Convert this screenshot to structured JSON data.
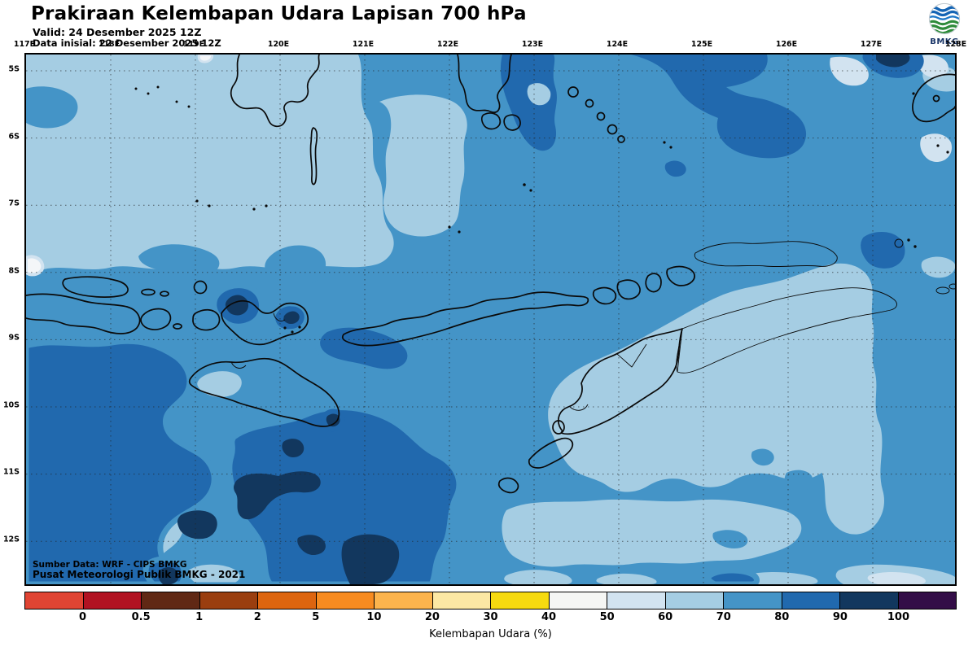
{
  "header": {
    "title": "Prakiraan Kelembapan Udara Lapisan 700 hPa",
    "valid_line": "Valid: 24 Desember 2025 12Z",
    "initial_line": "Data inisial: 22 Desember 2025 12Z"
  },
  "logo": {
    "label": "BMKG"
  },
  "axes": {
    "lon_labels": [
      "117E",
      "118E",
      "119E",
      "120E",
      "121E",
      "122E",
      "123E",
      "124E",
      "125E",
      "126E",
      "127E",
      "128E"
    ],
    "lat_labels": [
      "5S",
      "6S",
      "7S",
      "8S",
      "9S",
      "10S",
      "11S",
      "12S"
    ]
  },
  "map": {
    "credit_line1": "Sumber Data: WRF - CIPS BMKG",
    "credit_line2": "Pusat Meteorologi Publik BMKG - 2021"
  },
  "legend": {
    "caption": "Kelembapan Udara (%)",
    "tick_values": [
      "0",
      "0.5",
      "1",
      "2",
      "5",
      "10",
      "20",
      "30",
      "40",
      "50",
      "60",
      "70",
      "80",
      "90",
      "100"
    ],
    "segments": [
      {
        "color": "#e04433"
      },
      {
        "color": "#b11222"
      },
      {
        "color": "#602814"
      },
      {
        "color": "#9a3e0f"
      },
      {
        "color": "#dd650f"
      },
      {
        "color": "#f78b20"
      },
      {
        "color": "#fcb44d"
      },
      {
        "color": "#fce8a4"
      },
      {
        "color": "#f6da10"
      },
      {
        "color": "#f5f6f4"
      },
      {
        "color": "#d2e3f0"
      },
      {
        "color": "#a5cde3"
      },
      {
        "color": "#4494c7"
      },
      {
        "color": "#2169ae"
      },
      {
        "color": "#12375e"
      },
      {
        "color": "#330d47"
      }
    ]
  },
  "palette": {
    "c40": "#f4f6f8",
    "c50": "#d2e3f0",
    "c60": "#a5cde3",
    "c70": "#4494c7",
    "c80": "#2169ae",
    "c90": "#12375e"
  },
  "chart_data": {
    "type": "heatmap",
    "title": "Prakiraan Kelembapan Udara Lapisan 700 hPa",
    "xlabel_ticks": [
      "117E",
      "118E",
      "119E",
      "120E",
      "121E",
      "122E",
      "123E",
      "124E",
      "125E",
      "126E",
      "127E",
      "128E"
    ],
    "ylabel_ticks": [
      "5S",
      "6S",
      "7S",
      "8S",
      "9S",
      "10S",
      "11S",
      "12S"
    ],
    "legend_label": "Kelembapan Udara (%)",
    "legend_levels": [
      0,
      0.5,
      1,
      2,
      5,
      10,
      20,
      30,
      40,
      50,
      60,
      70,
      80,
      90,
      100
    ],
    "value_range_shown": [
      60,
      100
    ],
    "notes": "Contour-filled relative humidity: mostly 60-70% NW quadrant, 70-80% east and south, 80-90% patches north of Sumbawa / top-right / south of Java-Sumba, 90-100% cores south of the islands"
  }
}
